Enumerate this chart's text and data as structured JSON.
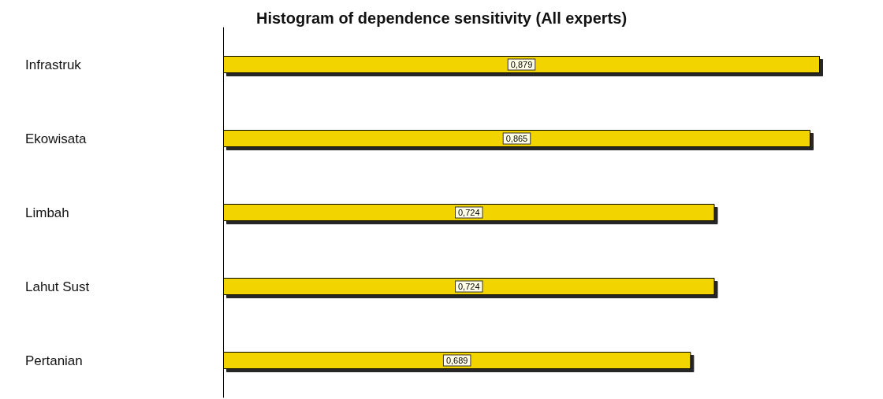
{
  "chart_data": {
    "type": "bar",
    "orientation": "horizontal",
    "title": "Histogram of dependence sensitivity (All experts)",
    "categories": [
      "Infrastruk",
      "Ekowisata",
      "Limbah",
      "Lahut Sust",
      "Pertanian"
    ],
    "values": [
      0.879,
      0.865,
      0.724,
      0.724,
      0.689
    ],
    "value_labels": [
      "0,879",
      "0,865",
      "0,724",
      "0,724",
      "0,689"
    ],
    "color": "#f2d500",
    "tick_labels": "y"
  }
}
